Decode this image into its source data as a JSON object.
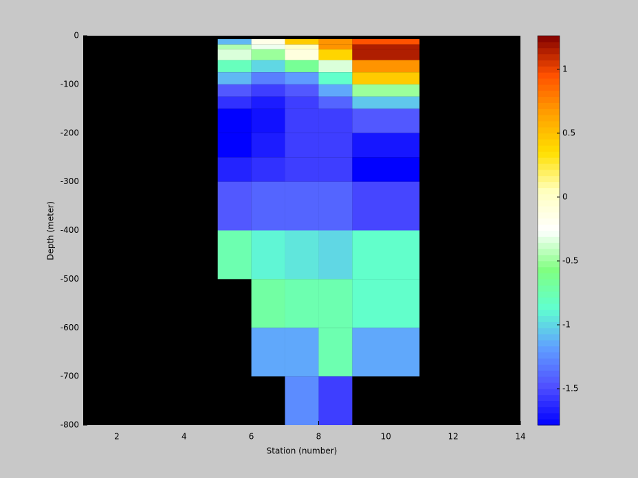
{
  "chart_data": {
    "type": "heatmap",
    "xlabel": "Station (number)",
    "ylabel": "Depth (meter)",
    "x_edges": [
      5,
      6,
      7,
      8,
      9,
      11
    ],
    "y_edges": [
      -7,
      -18,
      -28,
      -50,
      -75,
      -100,
      -125,
      -150,
      -200,
      -250,
      -300,
      -400,
      -500,
      -600,
      -700,
      -800
    ],
    "values": [
      [
        -1.1,
        -0.15,
        0.45,
        0.7,
        0.95
      ],
      [
        -0.45,
        -0.3,
        0.0,
        0.7,
        1.15
      ],
      [
        -0.35,
        -0.5,
        -0.1,
        0.4,
        1.15
      ],
      [
        -0.8,
        -1.0,
        -0.65,
        -0.35,
        0.7
      ],
      [
        -1.1,
        -1.3,
        -1.2,
        -0.85,
        0.45
      ],
      [
        -1.45,
        -1.55,
        -1.45,
        -1.15,
        -0.5
      ],
      [
        -1.6,
        -1.68,
        -1.55,
        -1.4,
        -1.05
      ],
      [
        -1.78,
        -1.72,
        -1.55,
        -1.55,
        -1.45
      ],
      [
        -1.78,
        -1.68,
        -1.55,
        -1.55,
        -1.7
      ],
      [
        -1.65,
        -1.6,
        -1.55,
        -1.55,
        -1.78
      ],
      [
        -1.45,
        -1.4,
        -1.4,
        -1.4,
        -1.52
      ],
      [
        -0.75,
        -0.9,
        -0.95,
        -1.0,
        -0.85
      ],
      [
        null,
        -0.7,
        -0.75,
        -0.75,
        -0.85
      ],
      [
        null,
        -1.15,
        -1.15,
        -0.75,
        -1.15
      ],
      [
        null,
        null,
        -1.25,
        -1.55,
        null
      ]
    ],
    "xlim": [
      1,
      14
    ],
    "xticks": [
      2,
      4,
      6,
      8,
      10,
      12,
      14
    ],
    "ylim": [
      -800,
      0
    ],
    "yticks": [
      -800,
      -700,
      -600,
      -500,
      -400,
      -300,
      -200,
      -100,
      0
    ],
    "clim": [
      -1.785,
      1.263
    ],
    "cticks": [
      -1.5,
      -1,
      -0.5,
      0,
      0.5,
      1
    ],
    "colormap": [
      "#0000ff",
      "#5050ff",
      "#60a0ff",
      "#60ffd0",
      "#80ff80",
      "#ffffff",
      "#ffffc0",
      "#ffe000",
      "#ffa000",
      "#ff5000",
      "#800000"
    ],
    "missing_color": "#000000"
  }
}
